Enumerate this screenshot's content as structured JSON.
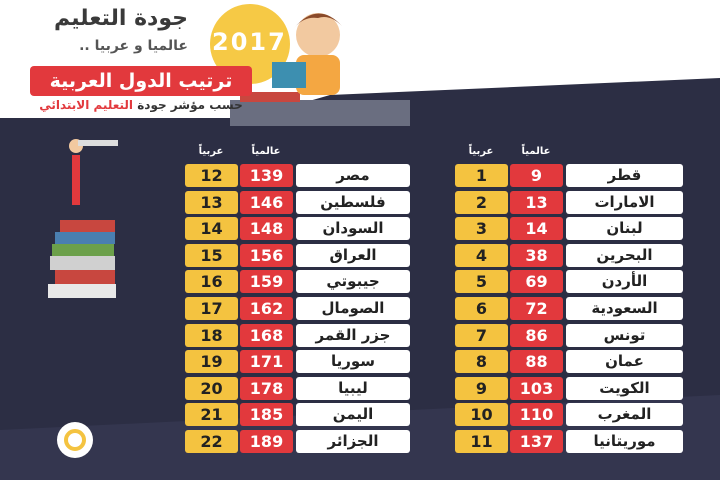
{
  "header": {
    "title": "جودة التعليم",
    "subtitle": "عالميا و عربيا ..",
    "year": "2017",
    "banner": "ترتيب الدول العربية",
    "banner_sub_prefix": "حسب مؤشر جودة",
    "banner_sub_highlight": "التعليم الابتدائي"
  },
  "tables": [
    {
      "world_header": "عالمياً",
      "arab_header": "عربياً",
      "rows": [
        [
          "قطر",
          9,
          1
        ],
        [
          "الامارات",
          13,
          2
        ],
        [
          "لبنان",
          14,
          3
        ],
        [
          "البحرين",
          38,
          4
        ],
        [
          "الأردن",
          69,
          5
        ],
        [
          "السعودية",
          72,
          6
        ],
        [
          "تونس",
          86,
          7
        ],
        [
          "عمان",
          88,
          8
        ],
        [
          "الكويت",
          103,
          9
        ],
        [
          "المغرب",
          110,
          10
        ],
        [
          "موريتانيا",
          137,
          11
        ]
      ]
    },
    {
      "world_header": "عالمياً",
      "arab_header": "عربياً",
      "rows": [
        [
          "مصر",
          139,
          12
        ],
        [
          "فلسطين",
          146,
          13
        ],
        [
          "السودان",
          148,
          14
        ],
        [
          "العراق",
          156,
          15
        ],
        [
          "جيبوتي",
          159,
          16
        ],
        [
          "الصومال",
          162,
          17
        ],
        [
          "جزر القمر",
          168,
          18
        ],
        [
          "سوريا",
          171,
          19
        ],
        [
          "ليبيا",
          178,
          20
        ],
        [
          "اليمن",
          185,
          21
        ],
        [
          "الجزائر",
          189,
          22
        ]
      ]
    }
  ]
}
